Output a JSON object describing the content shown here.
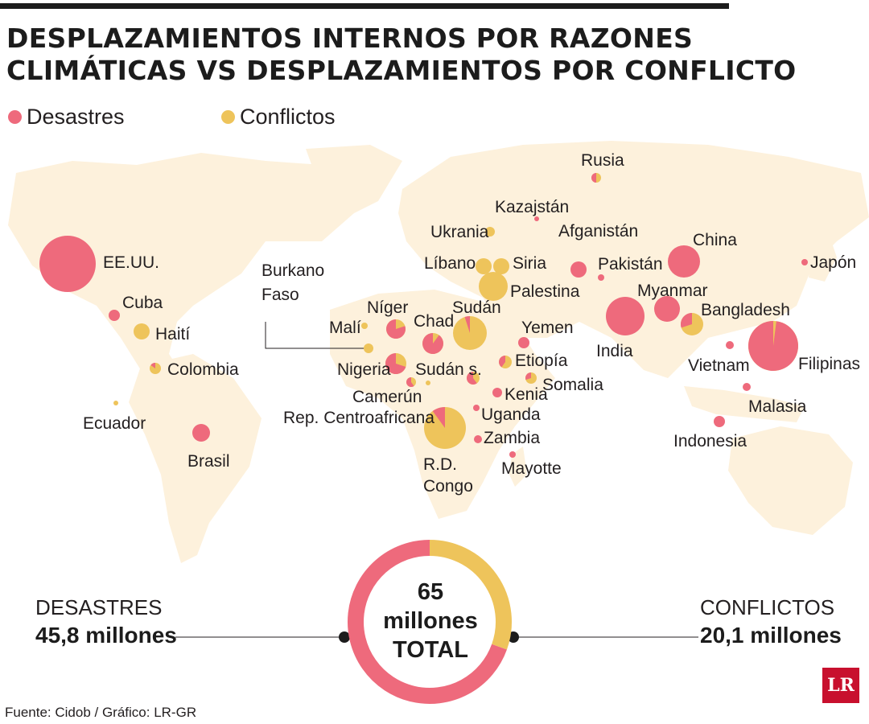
{
  "title_line1": "DESPLAZAMIENTOS INTERNOS POR RAZONES",
  "title_line2": "CLIMÁTICAS VS DESPLAZAMIENTOS POR CONFLICTO",
  "legend": {
    "disasters_label": "Desastres",
    "conflicts_label": "Conflictos",
    "disaster_color": "#ee6a7c",
    "conflict_color": "#eec45b",
    "land_color": "#fdf1dc"
  },
  "countries": [
    {
      "name": "EE.UU.",
      "disaster_share": 1.0
    },
    {
      "name": "Cuba",
      "disaster_share": 1.0
    },
    {
      "name": "Haití",
      "disaster_share": 0.0
    },
    {
      "name": "Colombia",
      "disaster_share": 0.15
    },
    {
      "name": "Ecuador",
      "disaster_share": 0.0
    },
    {
      "name": "Brasil",
      "disaster_share": 1.0
    },
    {
      "name": "Burkano Faso",
      "disaster_share": 0.0
    },
    {
      "name": "Malí",
      "disaster_share": 0.0
    },
    {
      "name": "Níger",
      "disaster_share": 0.8
    },
    {
      "name": "Nigeria",
      "disaster_share": 0.7
    },
    {
      "name": "Chad",
      "disaster_share": 0.9
    },
    {
      "name": "Sudán",
      "disaster_share": 0.05
    },
    {
      "name": "Sudán s.",
      "disaster_share": 0.6
    },
    {
      "name": "Camerún",
      "disaster_share": 0.6
    },
    {
      "name": "Rep. Centroafricana",
      "disaster_share": 0.0
    },
    {
      "name": "R.D. Congo",
      "disaster_share": 0.1
    },
    {
      "name": "Uganda",
      "disaster_share": 1.0
    },
    {
      "name": "Zambia",
      "disaster_share": 1.0
    },
    {
      "name": "Mayotte",
      "disaster_share": 1.0
    },
    {
      "name": "Kenia",
      "disaster_share": 1.0
    },
    {
      "name": "Etiopía",
      "disaster_share": 0.4
    },
    {
      "name": "Somalia",
      "disaster_share": 0.3
    },
    {
      "name": "Yemen",
      "disaster_share": 1.0
    },
    {
      "name": "Líbano",
      "disaster_share": 0.0
    },
    {
      "name": "Siria",
      "disaster_share": 0.0
    },
    {
      "name": "Palestina",
      "disaster_share": 0.0
    },
    {
      "name": "Ukrania",
      "disaster_share": 0.0
    },
    {
      "name": "Kazajstán",
      "disaster_share": 1.0
    },
    {
      "name": "Rusia",
      "disaster_share": 0.5
    },
    {
      "name": "Afganistán",
      "disaster_share": 1.0
    },
    {
      "name": "Pakistán",
      "disaster_share": 1.0
    },
    {
      "name": "India",
      "disaster_share": 1.0
    },
    {
      "name": "China",
      "disaster_share": 1.0
    },
    {
      "name": "Myanmar",
      "disaster_share": 1.0
    },
    {
      "name": "Bangladesh",
      "disaster_share": 0.3
    },
    {
      "name": "Japón",
      "disaster_share": 1.0
    },
    {
      "name": "Vietnam",
      "disaster_share": 1.0
    },
    {
      "name": "Filipinas",
      "disaster_share": 0.98
    },
    {
      "name": "Malasia",
      "disaster_share": 1.0
    },
    {
      "name": "Indonesia",
      "disaster_share": 1.0
    }
  ],
  "totals": {
    "disasters_label": "DESASTRES",
    "disasters_value": "45,8 millones",
    "conflicts_label": "CONFLICTOS",
    "conflicts_value": "20,1 millones",
    "total_line1": "65",
    "total_line2": "millones",
    "total_line3": "TOTAL",
    "disasters_millions": 45.8,
    "conflicts_millions": 20.1
  },
  "source": "Fuente: Cidob / Gráfico: LR-GR",
  "logo": "LR"
}
